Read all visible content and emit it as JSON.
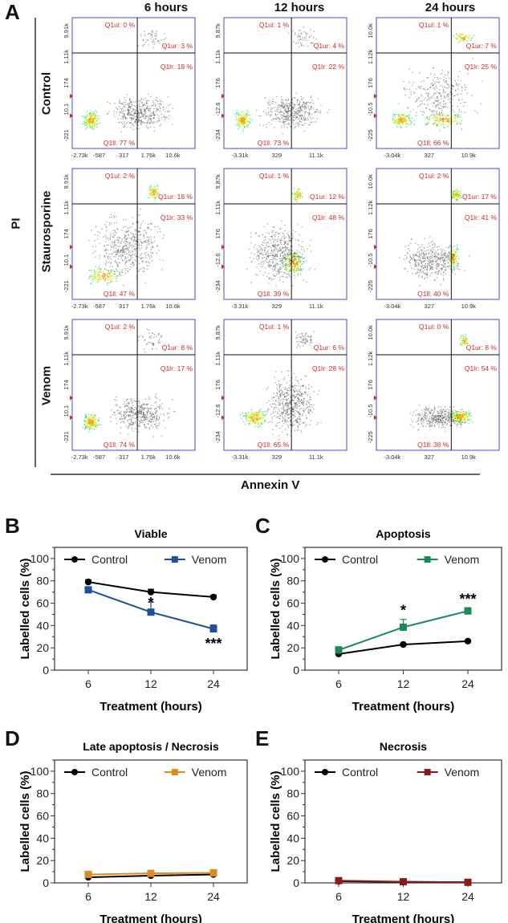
{
  "figure": {
    "panel_letters": [
      "A",
      "B",
      "C",
      "D",
      "E"
    ],
    "flow": {
      "column_titles": [
        "6 hours",
        "12 hours",
        "24 hours"
      ],
      "row_titles": [
        "Control",
        "Staurosporine",
        "Venom"
      ],
      "y_axis_label": "PI",
      "x_axis_label": "Annexin V",
      "x_ticks_by_column": [
        [
          "-2.73k",
          "-587",
          "317",
          "1.76k",
          "10.6k"
        ],
        [
          "-3.31k",
          "329",
          "11.1k"
        ],
        [
          "-3.04k",
          "327",
          "10.9k"
        ]
      ],
      "y_ticks_by_column": [
        [
          "9.91k",
          "1.11k",
          "174",
          "10.1",
          "-221"
        ],
        [
          "9.87k",
          "1.11k",
          "176",
          "-12.6",
          "-234"
        ],
        [
          "10.0k",
          "1.12k",
          "176",
          "-10.5",
          "-225"
        ]
      ],
      "plots": [
        [
          {
            "ul": "Q1ul: 0 %",
            "ur": "Q1ur: 3 %",
            "ll": "Q1ll: 77 %",
            "lr": "Q1lr: 19 %",
            "pop": "viable"
          },
          {
            "ul": "Q1ul: 1 %",
            "ur": "Q1ur: 4 %",
            "ll": "Q1ll: 73 %",
            "lr": "Q1lr: 22 %",
            "pop": "viable"
          },
          {
            "ul": "Q1ul: 1 %",
            "ur": "Q1ur: 7 %",
            "ll": "Q1ll: 66 %",
            "lr": "Q1lr: 25 %",
            "pop": "band"
          }
        ],
        [
          {
            "ul": "Q1ul: 2 %",
            "ur": "Q1ur: 18 %",
            "ll": "Q1ll: 47 %",
            "lr": "Q1lr: 33 %",
            "pop": "stauro6"
          },
          {
            "ul": "Q1ul: 1 %",
            "ur": "Q1ur: 12 %",
            "ll": "Q1ll: 39 %",
            "lr": "Q1lr: 48 %",
            "pop": "stauro12"
          },
          {
            "ul": "Q1ul: 2 %",
            "ur": "Q1ur: 17 %",
            "ll": "Q1ll: 40 %",
            "lr": "Q1lr: 41 %",
            "pop": "stauro24"
          }
        ],
        [
          {
            "ul": "Q1ul: 2 %",
            "ur": "Q1ur: 8 %",
            "ll": "Q1ll: 74 %",
            "lr": "Q1lr: 17 %",
            "pop": "viable"
          },
          {
            "ul": "Q1ul: 1 %",
            "ur": "Q1ur: 6 %",
            "ll": "Q1ll: 65 %",
            "lr": "Q1lr: 28 %",
            "pop": "venom12"
          },
          {
            "ul": "Q1ul: 0 %",
            "ur": "Q1ur: 8 %",
            "ll": "Q1ll: 38 %",
            "lr": "Q1lr: 54 %",
            "pop": "venom24"
          }
        ]
      ]
    }
  },
  "chart_data": [
    {
      "type": "line",
      "panel": "B",
      "title": "Viable",
      "xlabel": "Treatment (hours)",
      "ylabel": "Labelled cells (%)",
      "categories": [
        "6",
        "12",
        "24"
      ],
      "ylim": [
        0,
        110
      ],
      "yticks": [
        "0",
        "20",
        "40",
        "60",
        "80",
        "100"
      ],
      "legend": "top",
      "series": [
        {
          "name": "Control",
          "color": "#000000",
          "marker": "circle",
          "values": [
            79,
            70,
            65.5
          ],
          "errors": [
            2,
            2.5,
            1.5
          ]
        },
        {
          "name": "Venom",
          "color": "#1f4e9c",
          "marker": "square",
          "values": [
            72,
            52,
            37
          ],
          "errors": [
            2,
            9,
            3.5
          ]
        }
      ],
      "annotations": [
        {
          "x": "12",
          "y": 62,
          "text": "*"
        },
        {
          "x": "24",
          "y": 25,
          "text": "***"
        }
      ]
    },
    {
      "type": "line",
      "panel": "C",
      "title": "Apoptosis",
      "xlabel": "Treatment (hours)",
      "ylabel": "Labelled cells (%)",
      "categories": [
        "6",
        "12",
        "24"
      ],
      "ylim": [
        0,
        110
      ],
      "yticks": [
        "0",
        "20",
        "40",
        "60",
        "80",
        "100"
      ],
      "legend": "top",
      "series": [
        {
          "name": "Control",
          "color": "#000000",
          "marker": "circle",
          "values": [
            14.5,
            23,
            26
          ],
          "errors": [
            1,
            1,
            1
          ]
        },
        {
          "name": "Venom",
          "color": "#1b8a5a",
          "marker": "square",
          "values": [
            18,
            38.5,
            53
          ],
          "errors": [
            3,
            7,
            3
          ]
        }
      ],
      "annotations": [
        {
          "x": "12",
          "y": 55,
          "text": "*"
        },
        {
          "x": "24",
          "y": 65,
          "text": "***"
        }
      ]
    },
    {
      "type": "line",
      "panel": "D",
      "title": "Late apoptosis / Necrosis",
      "xlabel": "Treatment (hours)",
      "ylabel": "Labelled cells (%)",
      "categories": [
        "6",
        "12",
        "24"
      ],
      "ylim": [
        0,
        110
      ],
      "yticks": [
        "0",
        "20",
        "40",
        "60",
        "80",
        "100"
      ],
      "legend": "top",
      "series": [
        {
          "name": "Control",
          "color": "#000000",
          "marker": "circle",
          "values": [
            5,
            6.5,
            7.5
          ],
          "errors": [
            0.5,
            0.5,
            0.5
          ]
        },
        {
          "name": "Venom",
          "color": "#e08a1e",
          "marker": "square",
          "values": [
            7.5,
            8.5,
            9
          ],
          "errors": [
            1.5,
            1.5,
            1
          ]
        }
      ],
      "annotations": []
    },
    {
      "type": "line",
      "panel": "E",
      "title": "Necrosis",
      "xlabel": "Treatment (hours)",
      "ylabel": "Labelled cells (%)",
      "categories": [
        "6",
        "12",
        "24"
      ],
      "ylim": [
        0,
        110
      ],
      "yticks": [
        "0",
        "20",
        "40",
        "60",
        "80",
        "100"
      ],
      "legend": "top",
      "series": [
        {
          "name": "Control",
          "color": "#000000",
          "marker": "circle",
          "values": [
            1.5,
            0.8,
            0.5
          ],
          "errors": [
            0.3,
            0.3,
            0.2
          ]
        },
        {
          "name": "Venom",
          "color": "#8b1a1a",
          "marker": "square",
          "values": [
            2,
            1,
            0.5
          ],
          "errors": [
            0.4,
            0.3,
            0.2
          ]
        }
      ],
      "annotations": []
    }
  ]
}
